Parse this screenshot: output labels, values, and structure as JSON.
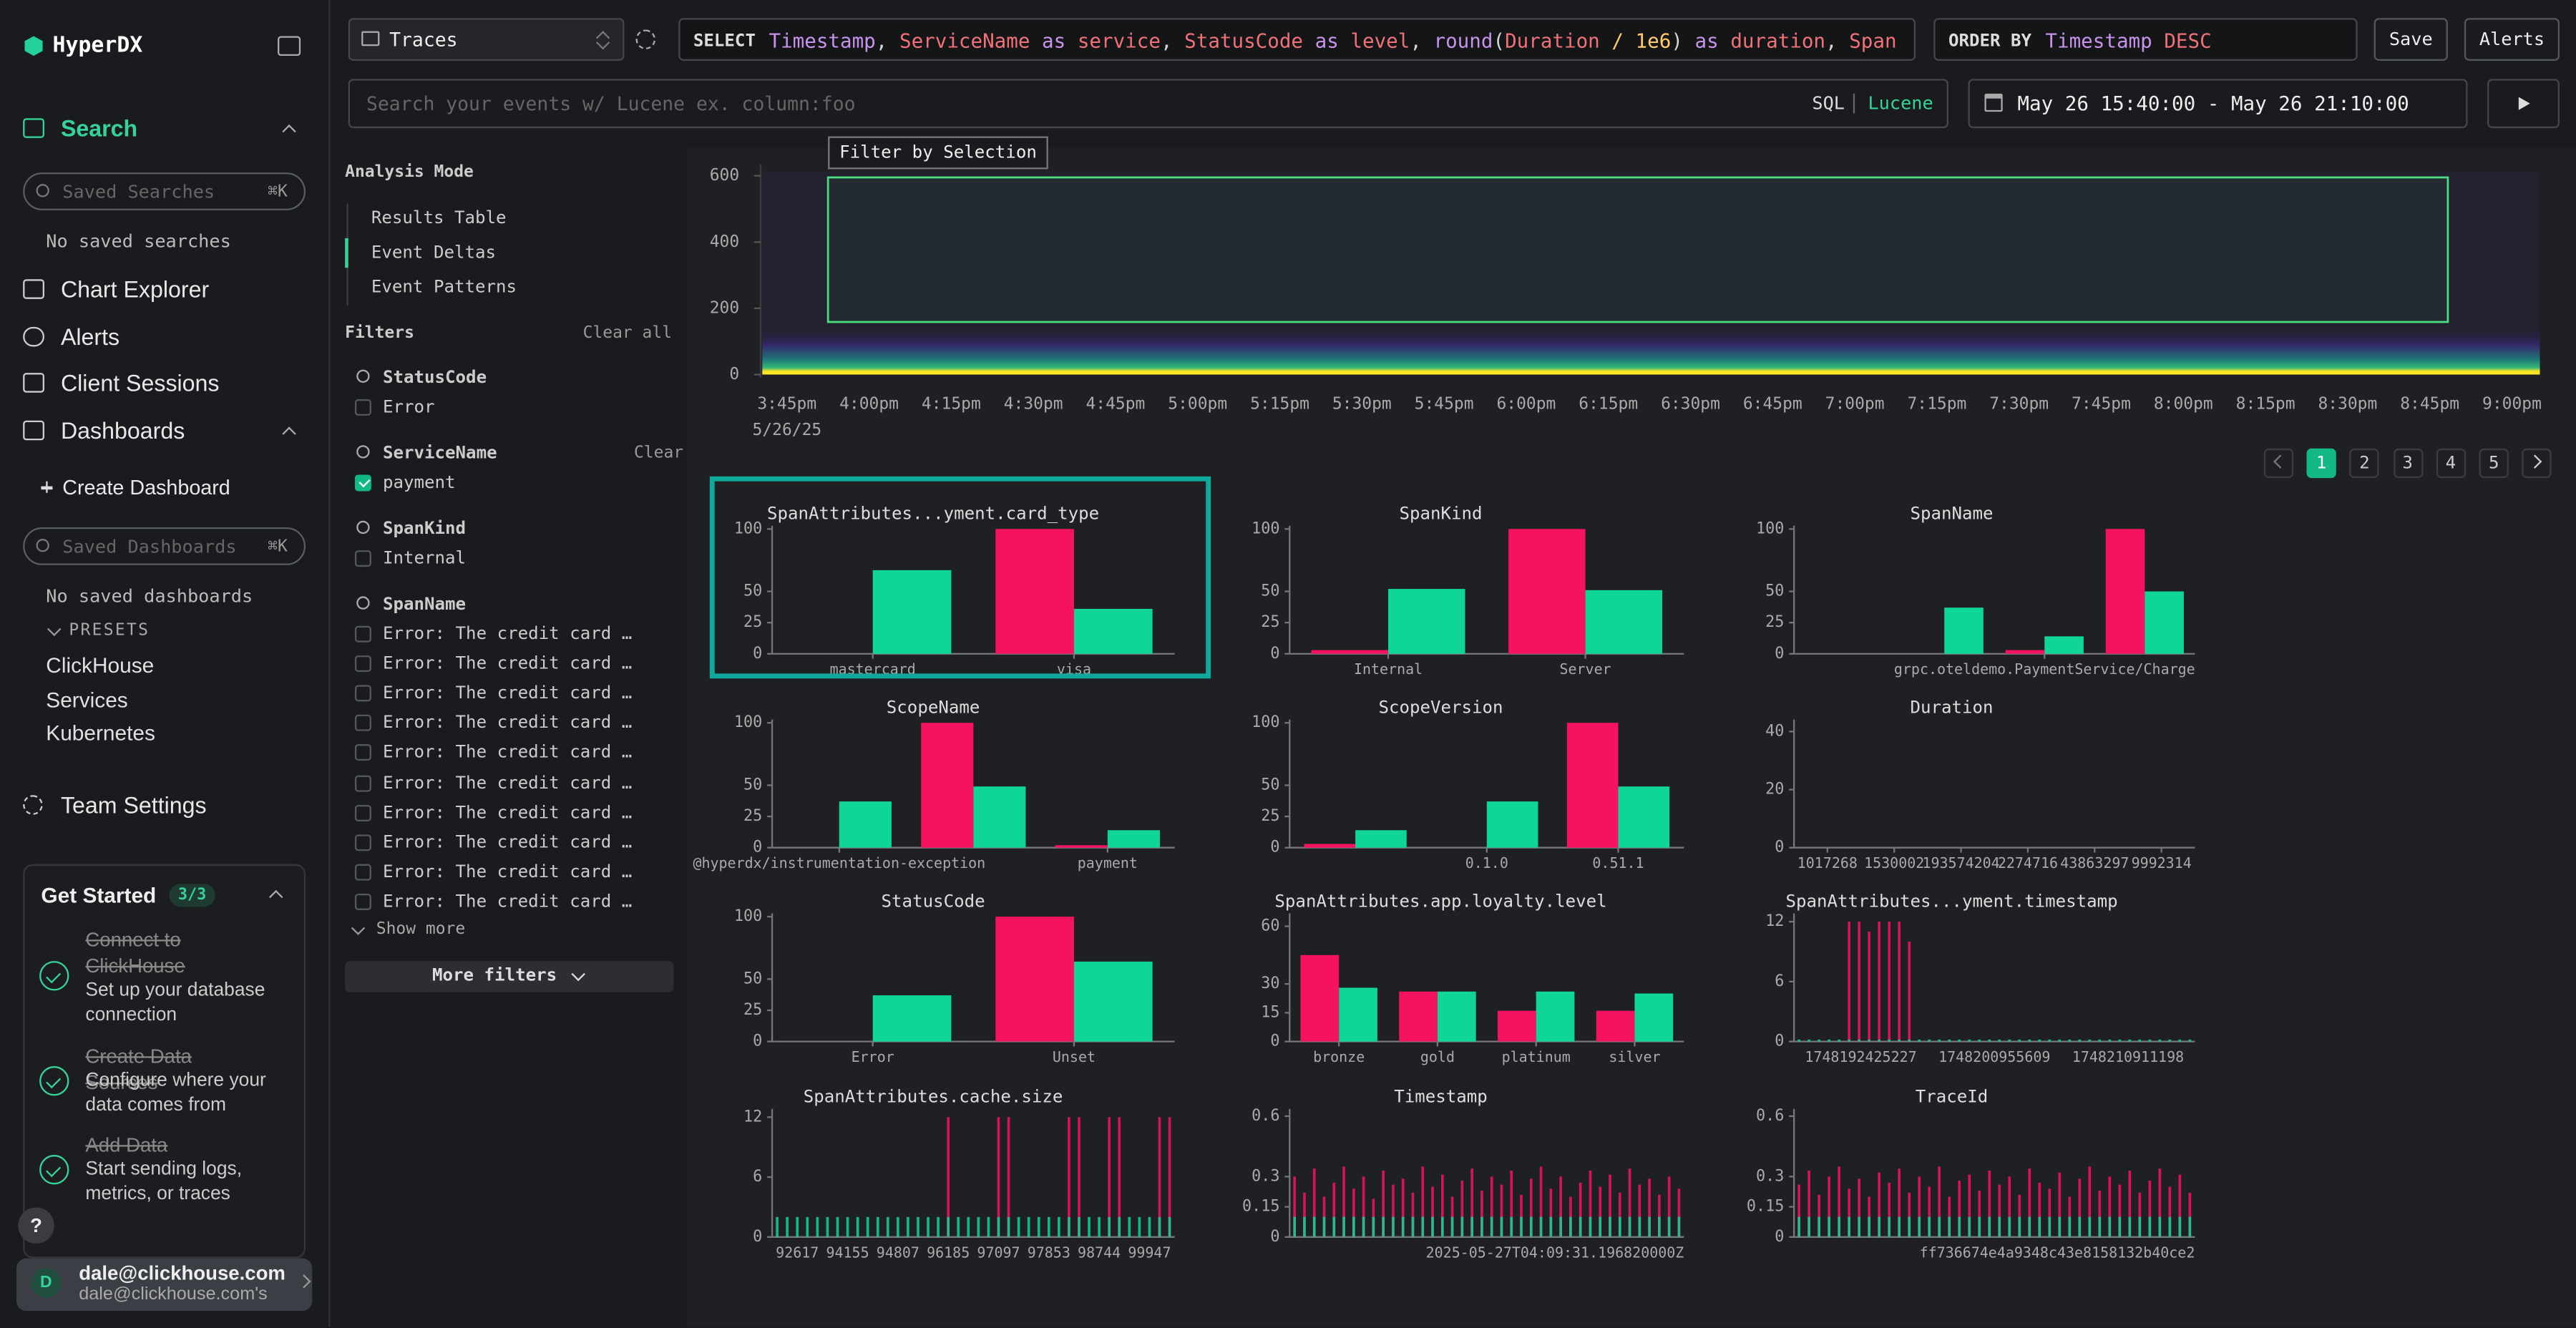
{
  "sidebar": {
    "brand": "HyperDX",
    "search": "Search",
    "saved_searches_placeholder": "Saved Searches",
    "shortcut": "⌘K",
    "no_saved_searches": "No saved searches",
    "nav": [
      "Chart Explorer",
      "Alerts",
      "Client Sessions"
    ],
    "dashboards": "Dashboards",
    "create_dashboard": "Create Dashboard",
    "saved_dashboards_placeholder": "Saved Dashboards",
    "no_saved_dashboards": "No saved dashboards",
    "presets_label": "PRESETS",
    "presets": [
      "ClickHouse",
      "Services",
      "Kubernetes"
    ],
    "team_settings": "Team Settings",
    "get_started": {
      "title": "Get Started",
      "progress": "3/3",
      "steps": [
        {
          "title": "Connect to ClickHouse",
          "description": "Set up your database connection"
        },
        {
          "title": "Create Data Sources",
          "description": "Configure where your data comes from"
        },
        {
          "title": "Add Data",
          "description": "Start sending logs, metrics, or traces"
        }
      ]
    },
    "help": "?",
    "user": {
      "initial": "D",
      "email": "dale@clickhouse.com",
      "team": "dale@clickhouse.com's"
    }
  },
  "toolbar": {
    "source": "Traces",
    "select_keyword": "SELECT",
    "select_tokens": [
      {
        "text": "Timestamp",
        "color": "#c792ea"
      },
      {
        "text": ", ",
        "color": "#d4d4d4"
      },
      {
        "text": "ServiceName",
        "color": "#f07178"
      },
      {
        "text": " as ",
        "color": "#c792ea"
      },
      {
        "text": "service",
        "color": "#f07178"
      },
      {
        "text": ", ",
        "color": "#d4d4d4"
      },
      {
        "text": "StatusCode",
        "color": "#f07178"
      },
      {
        "text": " as ",
        "color": "#c792ea"
      },
      {
        "text": "level",
        "color": "#f07178"
      },
      {
        "text": ", ",
        "color": "#d4d4d4"
      },
      {
        "text": "round",
        "color": "#c792ea"
      },
      {
        "text": "(",
        "color": "#d4d4d4"
      },
      {
        "text": "Duration",
        "color": "#f07178"
      },
      {
        "text": " / ",
        "color": "#ffcb6b"
      },
      {
        "text": "1e6",
        "color": "#ffcb6b"
      },
      {
        "text": ")",
        "color": "#d4d4d4"
      },
      {
        "text": " as ",
        "color": "#c792ea"
      },
      {
        "text": "duration",
        "color": "#f07178"
      },
      {
        "text": ", ",
        "color": "#d4d4d4"
      },
      {
        "text": "Span",
        "color": "#f07178"
      }
    ],
    "order_keyword": "ORDER BY",
    "order_tokens": [
      {
        "text": "Timestamp",
        "color": "#c792ea"
      },
      {
        "text": " DESC",
        "color": "#f07178"
      }
    ],
    "save": "Save",
    "alerts": "Alerts",
    "search_placeholder": "Search your events w/ Lucene ex. column:foo",
    "query_modes": [
      "SQL",
      "Lucene"
    ],
    "active_query_mode": 1,
    "time_range": "May 26 15:40:00 - May 26 21:10:00"
  },
  "filters": {
    "analysis_mode_label": "Analysis Mode",
    "analysis_modes": [
      "Results Table",
      "Event Deltas",
      "Event Patterns"
    ],
    "active_mode": 1,
    "title": "Filters",
    "clear_all": "Clear all",
    "groups": [
      {
        "name": "StatusCode",
        "options": [
          {
            "label": "Error",
            "checked": false
          }
        ]
      },
      {
        "name": "ServiceName",
        "clear": "Clear",
        "options": [
          {
            "label": "payment",
            "checked": true
          }
        ]
      },
      {
        "name": "SpanKind",
        "options": [
          {
            "label": "Internal",
            "checked": false
          }
        ]
      },
      {
        "name": "SpanName",
        "options": [
          {
            "label": "Error: The credit card …",
            "checked": false
          },
          {
            "label": "Error: The credit card …",
            "checked": false
          },
          {
            "label": "Error: The credit card …",
            "checked": false
          },
          {
            "label": "Error: The credit card …",
            "checked": false
          },
          {
            "label": "Error: The credit card …",
            "checked": false
          },
          {
            "label": "Error: The credit card …",
            "checked": false
          },
          {
            "label": "Error: The credit card …",
            "checked": false
          },
          {
            "label": "Error: The credit card …",
            "checked": false
          },
          {
            "label": "Error: The credit card …",
            "checked": false
          },
          {
            "label": "Error: The credit card …",
            "checked": false
          }
        ]
      }
    ],
    "show_more": "Show more",
    "more_filters": "More filters"
  },
  "heatmap": {
    "selection_button": "Filter by Selection",
    "ylim": [
      0,
      600
    ],
    "yticks": [
      0,
      200,
      400,
      600
    ],
    "x_labels": [
      "3:45pm",
      "4:00pm",
      "4:15pm",
      "4:30pm",
      "4:45pm",
      "5:00pm",
      "5:15pm",
      "5:30pm",
      "5:45pm",
      "6:00pm",
      "6:15pm",
      "6:30pm",
      "6:45pm",
      "7:00pm",
      "7:15pm",
      "7:30pm",
      "7:45pm",
      "8:00pm",
      "8:15pm",
      "8:30pm",
      "8:45pm",
      "9:00pm"
    ],
    "date": "5/26/25"
  },
  "pagination": {
    "pages": [
      1,
      2,
      3,
      4,
      5
    ],
    "current": 0
  },
  "charts": [
    {
      "type": "bar",
      "title": "SpanAttributes...yment.card_type",
      "highlight": true,
      "ylim": [
        0,
        100
      ],
      "yticks": [
        0,
        25,
        50,
        100
      ],
      "categories": [
        "mastercard",
        "visa"
      ],
      "series": [
        {
          "color": "#f5135f",
          "values": [
            null,
            100
          ]
        },
        {
          "color": "#0fd597",
          "values": [
            67,
            36
          ]
        }
      ]
    },
    {
      "type": "bar",
      "title": "SpanKind",
      "ylim": [
        0,
        100
      ],
      "yticks": [
        0,
        25,
        50,
        100
      ],
      "categories": [
        "Internal",
        "Server"
      ],
      "series": [
        {
          "color": "#f5135f",
          "values": [
            3,
            100
          ]
        },
        {
          "color": "#0fd597",
          "values": [
            52,
            51
          ]
        }
      ]
    },
    {
      "type": "bar",
      "title": "SpanName",
      "ylim": [
        0,
        100
      ],
      "yticks": [
        0,
        25,
        50,
        100
      ],
      "categories": [
        null,
        null,
        "grpc.oteldemo.PaymentService/Charge",
        null
      ],
      "series": [
        {
          "color": "#f5135f",
          "values": [
            null,
            null,
            3,
            100
          ]
        },
        {
          "color": "#0fd597",
          "values": [
            null,
            37,
            14,
            50
          ]
        }
      ]
    },
    {
      "type": "bar",
      "title": "ScopeName",
      "ylim": [
        0,
        100
      ],
      "yticks": [
        0,
        25,
        50,
        100
      ],
      "categories": [
        "@hyperdx/instrumentation-exception",
        null,
        "payment"
      ],
      "series": [
        {
          "color": "#f5135f",
          "values": [
            null,
            100,
            2
          ]
        },
        {
          "color": "#0fd597",
          "values": [
            37,
            49,
            14
          ]
        }
      ]
    },
    {
      "type": "bar",
      "title": "ScopeVersion",
      "ylim": [
        0,
        100
      ],
      "yticks": [
        0,
        25,
        50,
        100
      ],
      "categories": [
        null,
        "0.1.0",
        "0.51.1"
      ],
      "series": [
        {
          "color": "#f5135f",
          "values": [
            3,
            null,
            100
          ]
        },
        {
          "color": "#0fd597",
          "values": [
            14,
            37,
            49
          ]
        }
      ]
    },
    {
      "type": "bar",
      "title": "Duration",
      "ylim": [
        0,
        43
      ],
      "yticks": [
        0,
        20,
        40
      ],
      "categories": [
        "1017268",
        "1530002",
        "193574204",
        "2274716",
        "43863297",
        "9992314"
      ],
      "series": []
    },
    {
      "type": "bar",
      "title": "StatusCode",
      "ylim": [
        0,
        100
      ],
      "yticks": [
        0,
        25,
        50,
        100
      ],
      "categories": [
        "Error",
        "Unset"
      ],
      "series": [
        {
          "color": "#f5135f",
          "values": [
            null,
            100
          ]
        },
        {
          "color": "#0fd597",
          "values": [
            37,
            64
          ]
        }
      ]
    },
    {
      "type": "bar",
      "title": "SpanAttributes.app.loyalty.level",
      "ylim": [
        0,
        65
      ],
      "yticks": [
        0,
        15,
        30,
        60
      ],
      "categories": [
        "bronze",
        "gold",
        "platinum",
        "silver"
      ],
      "series": [
        {
          "color": "#f5135f",
          "values": [
            45,
            26,
            16,
            16
          ]
        },
        {
          "color": "#0fd597",
          "values": [
            28,
            26,
            26,
            25
          ]
        }
      ]
    },
    {
      "type": "spikes",
      "title": "SpanAttributes...yment.timestamp",
      "ylim": [
        0,
        12.5
      ],
      "yticks": [
        0,
        6,
        12
      ],
      "x_labels": [
        "1748192425227",
        "1748200955609",
        "1748210911198"
      ],
      "series": [
        {
          "color": "#f5135f",
          "values": [
            0,
            0,
            0,
            0,
            0,
            12,
            12,
            11,
            12,
            12,
            12,
            10,
            0,
            0,
            0,
            0,
            0,
            0,
            0,
            0,
            0,
            0,
            0,
            0,
            0,
            0,
            0,
            0,
            0,
            0,
            0,
            0,
            0,
            0,
            0,
            0,
            0,
            0,
            0,
            0
          ]
        },
        {
          "color": "#0fd597",
          "values": [
            0.2,
            0.2,
            0.2,
            0.2,
            0.2,
            0.2,
            0.2,
            0.2,
            0.2,
            0.2,
            0.2,
            0.2,
            0.2,
            0.2,
            0.2,
            0.2,
            0.2,
            0.2,
            0.2,
            0.2,
            0.2,
            0.2,
            0.2,
            0.2,
            0.2,
            0.2,
            0.2,
            0.2,
            0.2,
            0.2,
            0.2,
            0.2,
            0.2,
            0.2,
            0.2,
            0.2,
            0.2,
            0.2,
            0.2,
            0.2
          ]
        }
      ]
    },
    {
      "type": "spikes",
      "title": "SpanAttributes.cache.size",
      "ylim": [
        0,
        12.5
      ],
      "yticks": [
        0,
        6,
        12
      ],
      "x_labels": [
        "92617",
        "94155",
        "94807",
        "96185",
        "97097",
        "97853",
        "98744",
        "99947"
      ],
      "series": [
        {
          "color": "#f5135f",
          "values": [
            0,
            0,
            0,
            0,
            0,
            0,
            0,
            0,
            0,
            0,
            0,
            0,
            0,
            0,
            0,
            0,
            0,
            12,
            0,
            0,
            0,
            0,
            12,
            12,
            0,
            0,
            0,
            0,
            0,
            12,
            12,
            0,
            0,
            12,
            12,
            0,
            0,
            0,
            12,
            12
          ]
        },
        {
          "color": "#0fd597",
          "values": [
            2,
            2,
            2,
            2,
            2,
            2,
            2,
            2,
            2,
            2,
            2,
            2,
            2,
            2,
            2,
            2,
            2,
            2,
            2,
            2,
            2,
            2,
            2,
            2,
            2,
            2,
            2,
            2,
            2,
            2,
            2,
            2,
            2,
            2,
            2,
            2,
            2,
            2,
            2,
            2
          ]
        }
      ]
    },
    {
      "type": "spikes",
      "title": "Timestamp",
      "ylim": [
        0,
        0.62
      ],
      "yticks": [
        0,
        0.15,
        0.3,
        0.6
      ],
      "x_labels": [
        "2025-05-27T04:09:31.196820000Z"
      ],
      "series": [
        {
          "color": "#f5135f",
          "values": [
            0.3,
            0.22,
            0.34,
            0.2,
            0.27,
            0.35,
            0.24,
            0.3,
            0.19,
            0.33,
            0.26,
            0.29,
            0.22,
            0.35,
            0.25,
            0.31,
            0.2,
            0.28,
            0.34,
            0.23,
            0.3,
            0.26,
            0.33,
            0.21,
            0.29,
            0.35,
            0.24,
            0.3,
            0.2,
            0.27,
            0.33,
            0.25,
            0.31,
            0.22,
            0.34,
            0.26,
            0.29,
            0.21,
            0.3,
            0.24
          ]
        },
        {
          "color": "#0fd597",
          "values": [
            0.1,
            0.1,
            0.1,
            0.1,
            0.1,
            0.1,
            0.1,
            0.1,
            0.1,
            0.1,
            0.1,
            0.1,
            0.1,
            0.1,
            0.1,
            0.1,
            0.1,
            0.1,
            0.1,
            0.1,
            0.1,
            0.1,
            0.1,
            0.1,
            0.1,
            0.1,
            0.1,
            0.1,
            0.1,
            0.1,
            0.1,
            0.1,
            0.1,
            0.1,
            0.1,
            0.1,
            0.1,
            0.1,
            0.1,
            0.1
          ]
        }
      ]
    },
    {
      "type": "spikes",
      "title": "TraceId",
      "ylim": [
        0,
        0.62
      ],
      "yticks": [
        0,
        0.15,
        0.3,
        0.6
      ],
      "x_labels": [
        "ff736674e4a9348c43e8158132b40ce2"
      ],
      "series": [
        {
          "color": "#f5135f",
          "values": [
            0.26,
            0.33,
            0.21,
            0.3,
            0.35,
            0.24,
            0.29,
            0.2,
            0.32,
            0.27,
            0.34,
            0.22,
            0.3,
            0.25,
            0.35,
            0.2,
            0.28,
            0.31,
            0.23,
            0.33,
            0.26,
            0.3,
            0.21,
            0.34,
            0.27,
            0.24,
            0.32,
            0.2,
            0.29,
            0.35,
            0.23,
            0.3,
            0.26,
            0.33,
            0.22,
            0.28,
            0.34,
            0.25,
            0.31,
            0.22
          ]
        },
        {
          "color": "#0fd597",
          "values": [
            0.1,
            0.1,
            0.1,
            0.1,
            0.1,
            0.1,
            0.1,
            0.1,
            0.1,
            0.1,
            0.1,
            0.1,
            0.1,
            0.1,
            0.1,
            0.1,
            0.1,
            0.1,
            0.1,
            0.1,
            0.1,
            0.1,
            0.1,
            0.1,
            0.1,
            0.1,
            0.1,
            0.1,
            0.1,
            0.1,
            0.1,
            0.1,
            0.1,
            0.1,
            0.1,
            0.1,
            0.1,
            0.1,
            0.1,
            0.1
          ]
        }
      ]
    }
  ]
}
